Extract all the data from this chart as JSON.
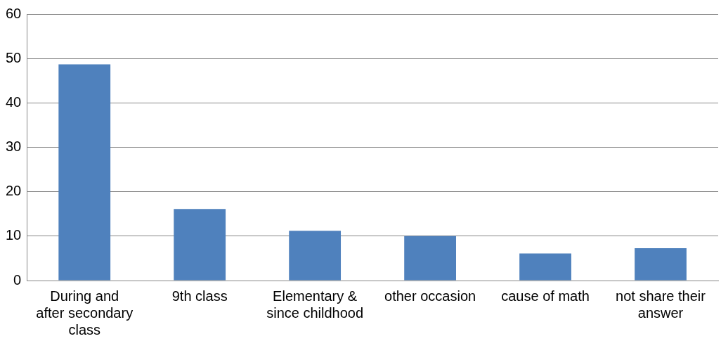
{
  "chart_data": {
    "type": "bar",
    "categories": [
      "During and after secondary class",
      "9th class",
      "Elementary & since childhood",
      "other occasion",
      "cause of math",
      "not share their answer"
    ],
    "values": [
      48.7,
      16.1,
      11.2,
      10,
      6.1,
      7.3
    ],
    "color": "#4f81bd",
    "ylim": [
      0,
      60
    ],
    "yticks": [
      0,
      10,
      20,
      30,
      40,
      50,
      60
    ],
    "grid": "y",
    "legend": false
  }
}
